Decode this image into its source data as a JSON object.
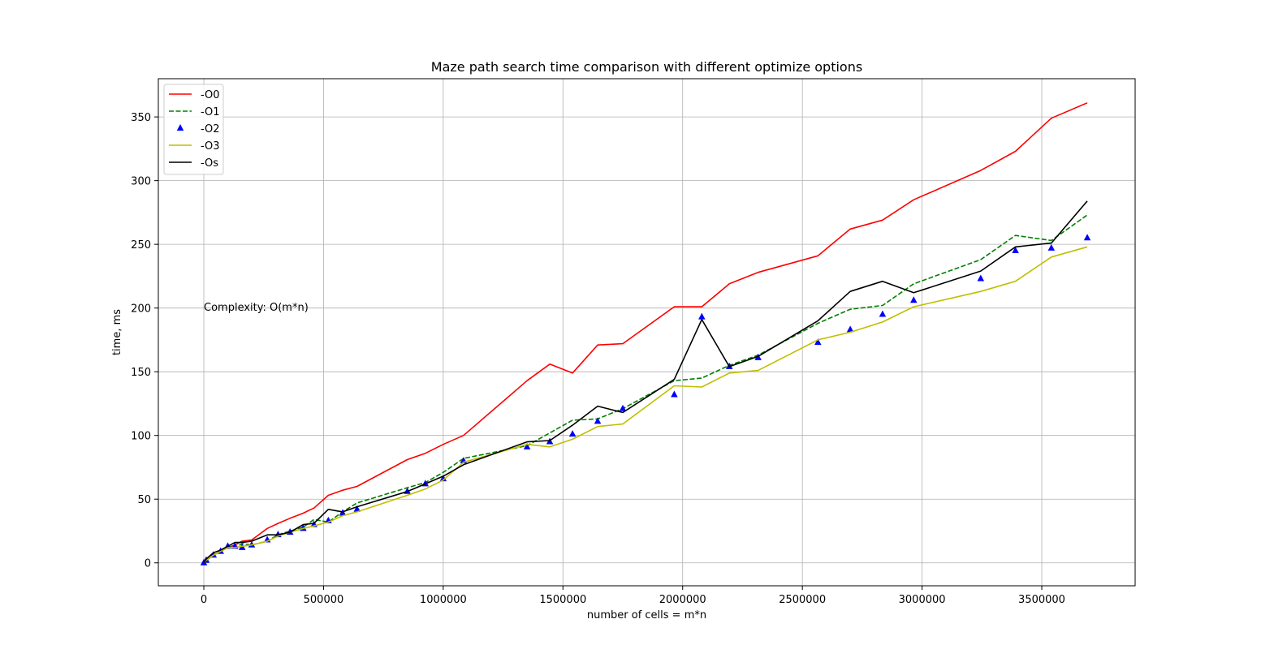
{
  "chart_data": {
    "type": "line",
    "title": "Maze path search time comparison with different optimize options",
    "xlabel": "number of cells = m*n",
    "ylabel": "time, ms",
    "xlim": [
      -190000,
      3890000
    ],
    "ylim": [
      -18,
      380
    ],
    "xticks": [
      0,
      500000,
      1000000,
      1500000,
      2000000,
      2500000,
      3000000,
      3500000
    ],
    "yticks": [
      0,
      50,
      100,
      150,
      200,
      250,
      300,
      350
    ],
    "grid": true,
    "legend_position": "top-left",
    "annotation": {
      "text": "Complexity: O(m*n)",
      "x": 0,
      "y": 198
    },
    "series": [
      {
        "name": "-O0",
        "style": "solid",
        "color": "#ff0000",
        "x": [
          0,
          10000,
          40000,
          70000,
          100000,
          130000,
          160000,
          200000,
          265000,
          310000,
          360000,
          415000,
          460000,
          520000,
          580000,
          640000,
          850000,
          925000,
          1000000,
          1085000,
          1350000,
          1445000,
          1540000,
          1645000,
          1750000,
          1965000,
          2080000,
          2195000,
          2315000,
          2565000,
          2700000,
          2835000,
          2965000,
          3245000,
          3390000,
          3540000,
          3690000
        ],
        "y": [
          0,
          2,
          6,
          9,
          12,
          14,
          17,
          18,
          27,
          31,
          35,
          39,
          43,
          53,
          57,
          60,
          81,
          86,
          93,
          100,
          143,
          156,
          149,
          171,
          172,
          201,
          201,
          219,
          228,
          241,
          262,
          269,
          285,
          308,
          323,
          349,
          361
        ]
      },
      {
        "name": "-O1",
        "style": "dashed",
        "color": "#008000",
        "x": [
          0,
          10000,
          40000,
          70000,
          100000,
          130000,
          160000,
          200000,
          265000,
          310000,
          360000,
          415000,
          460000,
          520000,
          580000,
          640000,
          850000,
          925000,
          1000000,
          1085000,
          1350000,
          1445000,
          1540000,
          1645000,
          1750000,
          1965000,
          2080000,
          2195000,
          2315000,
          2565000,
          2700000,
          2835000,
          2965000,
          3245000,
          3390000,
          3540000,
          3690000
        ],
        "y": [
          0,
          2,
          6,
          9,
          13,
          12,
          15,
          14,
          17,
          22,
          25,
          28,
          34,
          32,
          40,
          47,
          59,
          63,
          71,
          82,
          92,
          102,
          112,
          113,
          121,
          143,
          145,
          155,
          163,
          188,
          199,
          202,
          219,
          238,
          257,
          253,
          273
        ]
      },
      {
        "name": "-O2",
        "style": "markers",
        "color": "#0000ff",
        "x": [
          0,
          10000,
          40000,
          70000,
          100000,
          130000,
          160000,
          200000,
          265000,
          310000,
          360000,
          415000,
          460000,
          520000,
          580000,
          640000,
          850000,
          925000,
          1000000,
          1085000,
          1350000,
          1445000,
          1540000,
          1645000,
          1750000,
          1965000,
          2080000,
          2195000,
          2315000,
          2565000,
          2700000,
          2835000,
          2965000,
          3245000,
          3390000,
          3540000,
          3690000
        ],
        "y": [
          0,
          2,
          6,
          9,
          13,
          13,
          12,
          14,
          18,
          22,
          24,
          27,
          30,
          33,
          39,
          42,
          56,
          62,
          66,
          80,
          91,
          95,
          101,
          111,
          121,
          132,
          193,
          154,
          161,
          173,
          183,
          195,
          206,
          223,
          245,
          247,
          255
        ]
      },
      {
        "name": "-O3",
        "style": "solid",
        "color": "#bfbf00",
        "x": [
          0,
          10000,
          40000,
          70000,
          100000,
          130000,
          160000,
          200000,
          265000,
          310000,
          360000,
          415000,
          460000,
          520000,
          580000,
          640000,
          850000,
          925000,
          1000000,
          1085000,
          1350000,
          1445000,
          1540000,
          1645000,
          1750000,
          1965000,
          2080000,
          2195000,
          2315000,
          2565000,
          2700000,
          2835000,
          2965000,
          3245000,
          3390000,
          3540000,
          3690000
        ],
        "y": [
          0,
          2,
          6,
          9,
          12,
          12,
          13,
          14,
          17,
          21,
          24,
          27,
          29,
          32,
          37,
          40,
          53,
          58,
          65,
          79,
          93,
          91,
          97,
          107,
          109,
          139,
          138,
          149,
          151,
          175,
          181,
          189,
          201,
          213,
          221,
          240,
          248
        ]
      },
      {
        "name": "-Os",
        "style": "solid",
        "color": "#000000",
        "x": [
          0,
          10000,
          40000,
          70000,
          100000,
          130000,
          160000,
          200000,
          265000,
          310000,
          360000,
          415000,
          460000,
          520000,
          580000,
          640000,
          850000,
          925000,
          1000000,
          1085000,
          1350000,
          1445000,
          1540000,
          1645000,
          1750000,
          1965000,
          2080000,
          2195000,
          2315000,
          2565000,
          2700000,
          2835000,
          2965000,
          3245000,
          3390000,
          3540000,
          3690000
        ],
        "y": [
          0,
          3,
          8,
          10,
          13,
          16,
          16,
          17,
          22,
          22,
          24,
          30,
          31,
          42,
          40,
          44,
          56,
          62,
          68,
          77,
          95,
          96,
          108,
          123,
          118,
          144,
          191,
          154,
          162,
          190,
          213,
          221,
          212,
          229,
          248,
          251,
          284
        ]
      }
    ]
  }
}
